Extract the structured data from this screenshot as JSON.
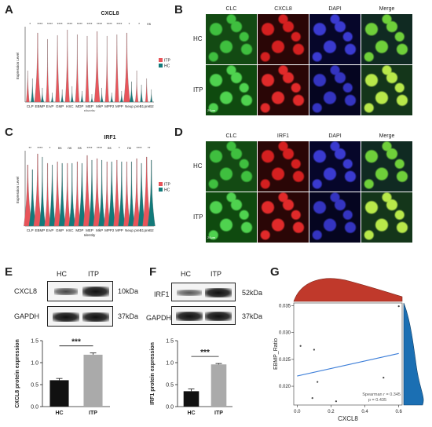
{
  "panels": {
    "A": {
      "letter": "A",
      "title": "CXCL8",
      "ylabel": "Expression Level",
      "xlabel": "Identity",
      "categories": [
        "CLP",
        "EBMP",
        "ErvP",
        "GMP",
        "HSC",
        "MDP",
        "MEP",
        "MkP",
        "MPP2",
        "MPP",
        "Neup",
        "preB1",
        "preB2"
      ],
      "sig": [
        "*",
        "****",
        "****",
        "****",
        "****",
        "****",
        "****",
        "****",
        "****",
        "****",
        "*",
        "*",
        "ns"
      ],
      "legend": [
        "ITP",
        "HC"
      ]
    },
    "C": {
      "letter": "C",
      "title": "IRF1",
      "ylabel": "Expression Level",
      "xlabel": "Identity",
      "categories": [
        "CLP",
        "EBMP",
        "ErvP",
        "GMP",
        "HSC",
        "MDP",
        "MEP",
        "MkP",
        "MPP2",
        "MPP",
        "Neup",
        "preB1",
        "preB2"
      ],
      "sig": [
        "**",
        "****",
        "*",
        "ns",
        "ns",
        "ns",
        "****",
        "****",
        "ns",
        "*",
        "ns",
        "****",
        "**"
      ],
      "legend": [
        "ITP",
        "HC"
      ]
    },
    "B": {
      "letter": "B",
      "cols": [
        "CLC",
        "CXCL8",
        "DAPI",
        "Merge"
      ],
      "rows": [
        "HC",
        "ITP"
      ],
      "scale": "20μm"
    },
    "D": {
      "letter": "D",
      "cols": [
        "CLC",
        "IRF1",
        "DAPI",
        "Merge"
      ],
      "rows": [
        "HC",
        "ITP"
      ],
      "scale": "20μm"
    },
    "E": {
      "letter": "E",
      "lanes": [
        "HC",
        "ITP"
      ],
      "blots": [
        {
          "name": "CXCL8",
          "kda": "10kDa"
        },
        {
          "name": "GAPDH",
          "kda": "37kDa"
        }
      ],
      "ylabel": "CXCL8 protein expression",
      "sig": "***"
    },
    "F": {
      "letter": "F",
      "lanes": [
        "HC",
        "ITP"
      ],
      "blots": [
        {
          "name": "IRF1",
          "kda": "52kDa"
        },
        {
          "name": "GAPDH",
          "kda": "37kDa"
        }
      ],
      "ylabel": "IRF1 protein expression",
      "sig": "***"
    },
    "G": {
      "letter": "G",
      "xlabel": "CXCL8",
      "ylabel": "EBMP_Ratio",
      "annot1": "Spearman r = 0.345",
      "annot2": "p = 0.435"
    }
  },
  "chart_data": [
    {
      "type": "bar",
      "panel": "E",
      "categories": [
        "HC",
        "ITP"
      ],
      "values": [
        0.6,
        1.18
      ],
      "errors": [
        0.04,
        0.04
      ],
      "ylim": [
        0,
        1.5
      ],
      "yticks": [
        "0.0",
        "0.5",
        "1.0",
        "1.5"
      ],
      "ylabel": "CXCL8 protein expression",
      "colors": [
        "#111111",
        "#aaaaaa"
      ]
    },
    {
      "type": "bar",
      "panel": "F",
      "categories": [
        "HC",
        "ITP"
      ],
      "values": [
        0.35,
        0.96
      ],
      "errors": [
        0.05,
        0.02
      ],
      "ylim": [
        0,
        1.5
      ],
      "yticks": [
        "0.0",
        "0.5",
        "1.0",
        "1.5"
      ],
      "ylabel": "IRF1 protein expression",
      "colors": [
        "#111111",
        "#aaaaaa"
      ]
    },
    {
      "type": "scatter",
      "panel": "G",
      "xlabel": "CXCL8",
      "ylabel": "EBMP_Ratio",
      "xlim": [
        -0.02,
        0.62
      ],
      "ylim": [
        0.0165,
        0.0355
      ],
      "xticks": [
        "0.0",
        "0.2",
        "0.4",
        "0.6"
      ],
      "yticks": [
        "0.020",
        "0.025",
        "0.030",
        "0.035"
      ],
      "x": [
        0.02,
        0.1,
        0.12,
        0.23,
        0.51,
        0.6,
        0.09
      ],
      "y": [
        0.0275,
        0.0268,
        0.0208,
        0.0172,
        0.0216,
        0.0349,
        0.0178
      ],
      "fit": {
        "x": [
          0.0,
          0.6
        ],
        "y": [
          0.0219,
          0.0261
        ]
      },
      "colors": {
        "points": "#444444",
        "fit": "#3b7dd8",
        "density": "#c0392b",
        "density_y": "#1b6fb3"
      }
    }
  ],
  "colors": {
    "itp": "#e8545a",
    "hc": "#127a7a",
    "clc": "#2a9a2a",
    "red": "#c01818",
    "dapi": "#2a2aa0"
  }
}
